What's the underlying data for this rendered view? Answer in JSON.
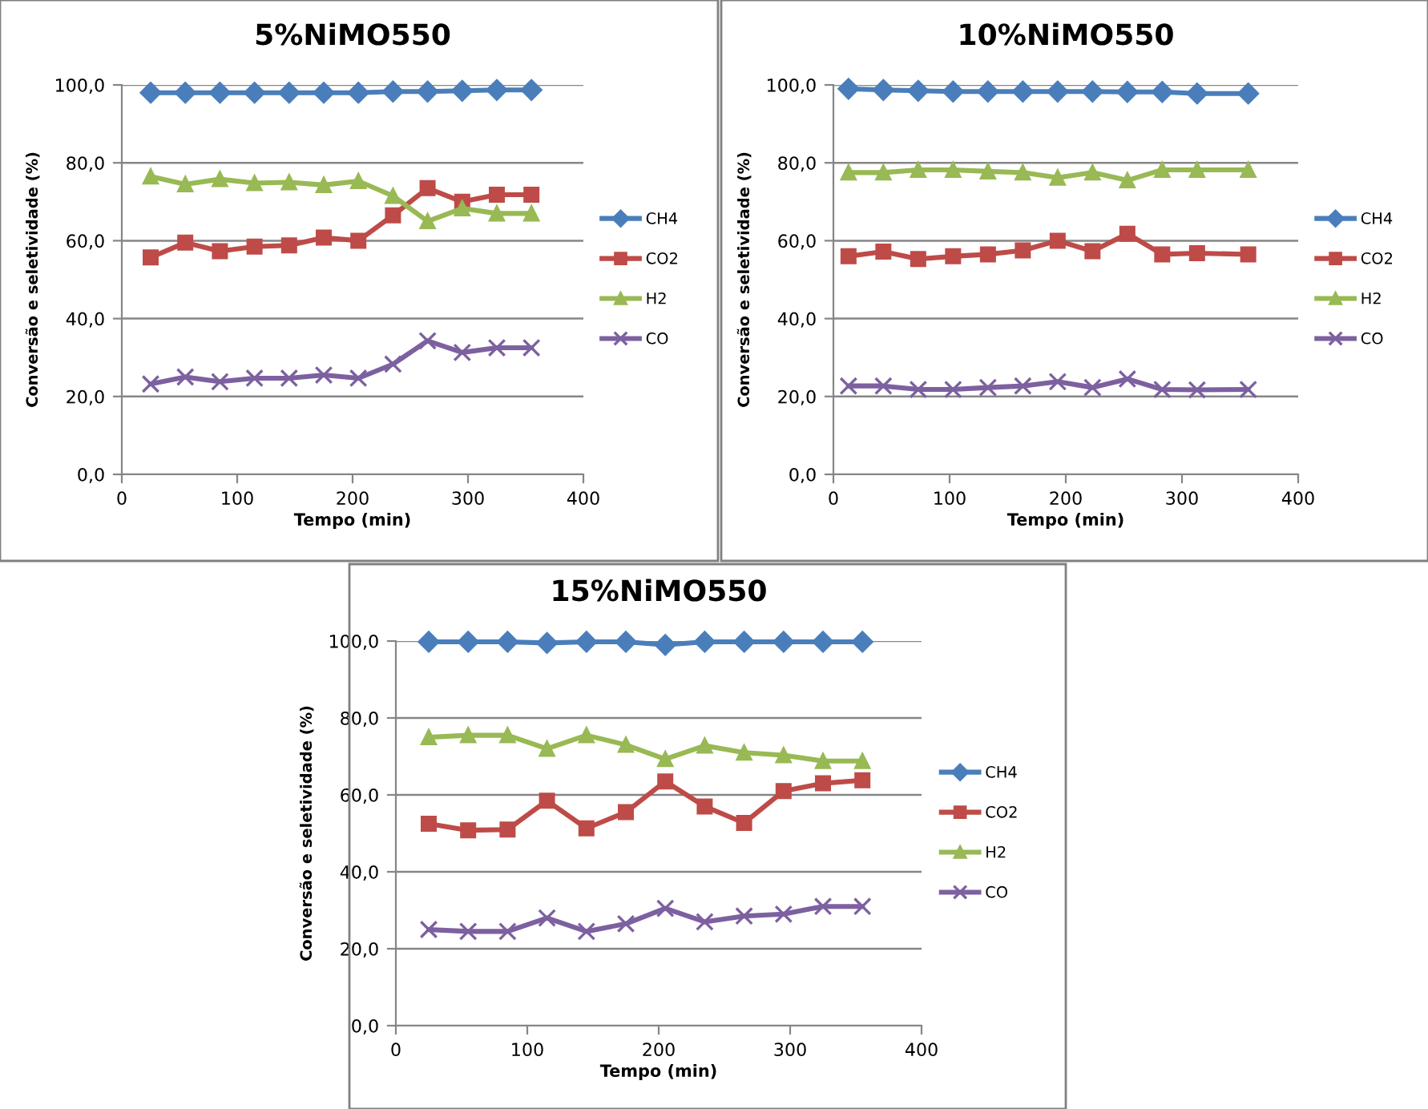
{
  "chart_data": [
    {
      "type": "line",
      "title": "5%NiMO550",
      "xlabel": "Tempo (min)",
      "ylabel": "Conversão e seletividade (%)",
      "xlim": [
        0,
        400
      ],
      "xticks": [
        0,
        100,
        200,
        300,
        400
      ],
      "ylim": [
        0,
        100
      ],
      "yticks": [
        {
          "value": 0,
          "label": "0,0"
        },
        {
          "value": 20,
          "label": "20,0"
        },
        {
          "value": 40,
          "label": "40,0"
        },
        {
          "value": 60,
          "label": "60,0"
        },
        {
          "value": 80,
          "label": "80,0"
        },
        {
          "value": 100,
          "label": "100,0"
        }
      ],
      "grid": "y",
      "legend": "right",
      "x": [
        25,
        55,
        85,
        115,
        145,
        175,
        205,
        235,
        265,
        295,
        325,
        355
      ],
      "series": [
        {
          "name": "CH4",
          "color": "#4a7ebb",
          "marker": "diamond",
          "values": [
            98,
            98,
            98,
            98,
            98,
            98,
            98,
            98.3,
            98.3,
            98.5,
            98.7,
            98.7
          ]
        },
        {
          "name": "CO2",
          "color": "#be4b48",
          "marker": "square",
          "values": [
            55.7,
            59.5,
            57.3,
            58.5,
            58.8,
            60.8,
            60,
            66.5,
            73.5,
            70,
            71.8,
            71.8
          ]
        },
        {
          "name": "H2",
          "color": "#98b954",
          "marker": "triangle",
          "values": [
            76.5,
            74.5,
            75.8,
            74.8,
            75,
            74.3,
            75.3,
            71.5,
            65,
            68.3,
            67,
            67
          ]
        },
        {
          "name": "CO",
          "color": "#7d60a0",
          "marker": "cross",
          "values": [
            23.2,
            25,
            23.8,
            24.7,
            24.7,
            25.5,
            24.7,
            28.3,
            34.3,
            31.3,
            32.5,
            32.5
          ]
        }
      ]
    },
    {
      "type": "line",
      "title": "10%NiMO550",
      "xlabel": "Tempo (min)",
      "ylabel": "Conversão e seletividade (%)",
      "xlim": [
        0,
        400
      ],
      "xticks": [
        0,
        100,
        200,
        300,
        400
      ],
      "ylim": [
        0,
        100
      ],
      "yticks": [
        {
          "value": 0,
          "label": "0,0"
        },
        {
          "value": 20,
          "label": "20,0"
        },
        {
          "value": 40,
          "label": "40,0"
        },
        {
          "value": 60,
          "label": "60,0"
        },
        {
          "value": 80,
          "label": "80,0"
        },
        {
          "value": 100,
          "label": "100,0"
        }
      ],
      "grid": "y",
      "legend": "right",
      "x": [
        13,
        43,
        73,
        103,
        133,
        163,
        193,
        223,
        253,
        283,
        313,
        357
      ],
      "series": [
        {
          "name": "CH4",
          "color": "#4a7ebb",
          "marker": "diamond",
          "values": [
            99,
            98.7,
            98.5,
            98.3,
            98.3,
            98.3,
            98.3,
            98.3,
            98.2,
            98.2,
            97.8,
            97.8
          ]
        },
        {
          "name": "CO2",
          "color": "#be4b48",
          "marker": "square",
          "values": [
            56,
            57.2,
            55.3,
            56,
            56.5,
            57.5,
            60,
            57.3,
            61.8,
            56.5,
            56.8,
            56.5
          ]
        },
        {
          "name": "H2",
          "color": "#98b954",
          "marker": "triangle",
          "values": [
            77.5,
            77.5,
            78.2,
            78.2,
            77.8,
            77.5,
            76.2,
            77.5,
            75.5,
            78.2,
            78.2,
            78.2
          ]
        },
        {
          "name": "CO",
          "color": "#7d60a0",
          "marker": "cross",
          "values": [
            22.7,
            22.7,
            21.8,
            21.8,
            22.3,
            22.7,
            23.8,
            22.3,
            24.5,
            21.8,
            21.7,
            21.8
          ]
        }
      ]
    },
    {
      "type": "line",
      "title": "15%NiMO550",
      "xlabel": "Tempo (min)",
      "ylabel": "Conversão e seletividade (%)",
      "xlim": [
        0,
        400
      ],
      "xticks": [
        0,
        100,
        200,
        300,
        400
      ],
      "ylim": [
        0,
        100
      ],
      "yticks": [
        {
          "value": 0,
          "label": "0,0"
        },
        {
          "value": 20,
          "label": "20,0"
        },
        {
          "value": 40,
          "label": "40,0"
        },
        {
          "value": 60,
          "label": "60,0"
        },
        {
          "value": 80,
          "label": "80,0"
        },
        {
          "value": 100,
          "label": "100,0"
        }
      ],
      "grid": "y",
      "legend": "right",
      "x": [
        25,
        55,
        85,
        115,
        145,
        175,
        205,
        235,
        265,
        295,
        325,
        355
      ],
      "series": [
        {
          "name": "CH4",
          "color": "#4a7ebb",
          "marker": "diamond",
          "values": [
            99.8,
            99.8,
            99.8,
            99.5,
            99.8,
            99.8,
            99,
            99.8,
            99.8,
            99.8,
            99.8,
            99.8
          ]
        },
        {
          "name": "CO2",
          "color": "#be4b48",
          "marker": "square",
          "values": [
            52.5,
            50.8,
            51,
            58.5,
            51.3,
            55.5,
            63.5,
            57,
            52.7,
            61,
            63,
            63.8
          ]
        },
        {
          "name": "H2",
          "color": "#98b954",
          "marker": "triangle",
          "values": [
            75,
            75.5,
            75.5,
            72,
            75.5,
            73,
            69.3,
            72.8,
            71,
            70.3,
            68.8,
            68.8
          ]
        },
        {
          "name": "CO",
          "color": "#7d60a0",
          "marker": "cross",
          "values": [
            25,
            24.5,
            24.5,
            28,
            24.5,
            26.5,
            30.5,
            27,
            28.5,
            29,
            31,
            31
          ]
        }
      ]
    }
  ]
}
